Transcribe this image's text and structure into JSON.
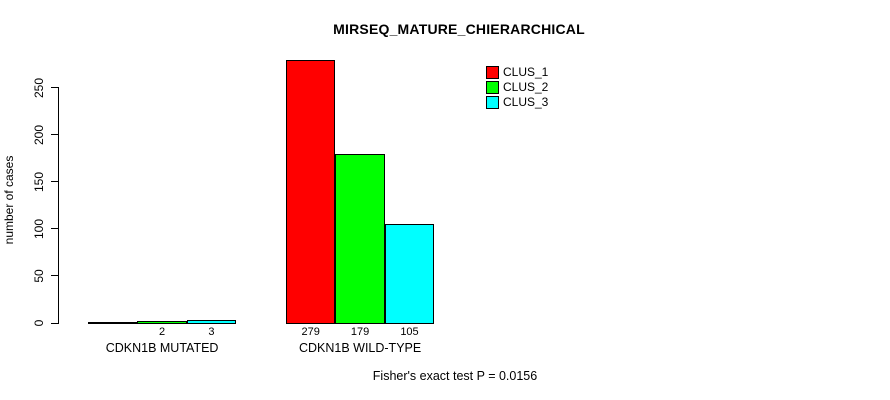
{
  "chart_data": {
    "type": "bar",
    "title": "MIRSEQ_MATURE_CHIERARCHICAL",
    "ylabel": "number of cases",
    "xlabel": "",
    "ylim": [
      0,
      250
    ],
    "yticks": [
      0,
      50,
      100,
      150,
      200,
      250
    ],
    "grid": false,
    "legend_position": "top-right-inside",
    "series": [
      {
        "name": "CLUS_1",
        "color": "#FF0000"
      },
      {
        "name": "CLUS_2",
        "color": "#00FF00"
      },
      {
        "name": "CLUS_3",
        "color": "#00FFFF"
      }
    ],
    "categories": [
      "CDKN1B MUTATED",
      "CDKN1B WILD-TYPE"
    ],
    "groups": [
      {
        "label": "CDKN1B MUTATED",
        "values": [
          1,
          2,
          3
        ],
        "value_labels": [
          "",
          "2",
          "3"
        ]
      },
      {
        "label": "CDKN1B WILD-TYPE",
        "values": [
          279,
          179,
          105
        ],
        "value_labels": [
          "279",
          "179",
          "105"
        ]
      }
    ],
    "annotation": "Fisher's exact test P = 0.0156"
  },
  "colors": {
    "background": "#FFFFFF",
    "axis": "#000000",
    "text": "#000000",
    "bar_border": "#000000"
  }
}
